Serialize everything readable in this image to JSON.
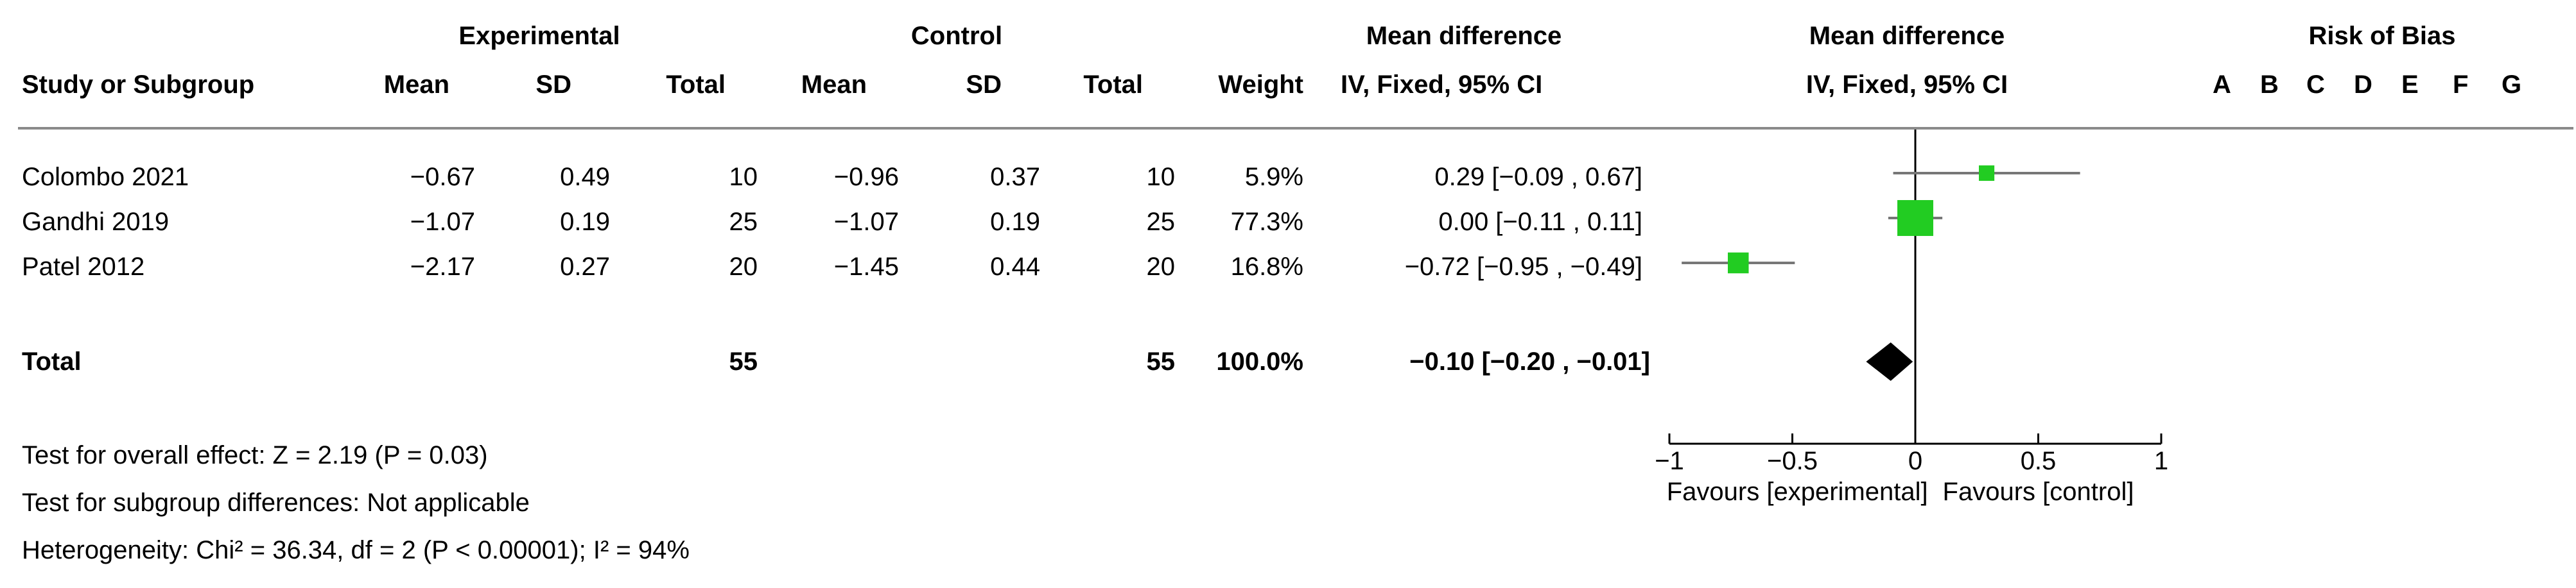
{
  "header": {
    "group1": "Experimental",
    "group2": "Control",
    "md_text_title": "Mean difference",
    "md_plot_title": "Mean difference",
    "rob_title": "Risk of Bias",
    "col_study": "Study or Subgroup",
    "col_mean1": "Mean",
    "col_sd1": "SD",
    "col_total1": "Total",
    "col_mean2": "Mean",
    "col_sd2": "SD",
    "col_total2": "Total",
    "col_weight": "Weight",
    "col_ci": "IV, Fixed, 95% CI",
    "col_plot_ci": "IV, Fixed, 95% CI",
    "rob_letters": [
      "A",
      "B",
      "C",
      "D",
      "E",
      "F",
      "G"
    ]
  },
  "studies": [
    {
      "name": "Colombo 2021",
      "mean1": "−0.67",
      "sd1": "0.49",
      "total1": "10",
      "mean2": "−0.96",
      "sd2": "0.37",
      "total2": "10",
      "weight": "5.9%",
      "ci": "0.29 [−0.09 ,  0.67]"
    },
    {
      "name": "Gandhi 2019",
      "mean1": "−1.07",
      "sd1": "0.19",
      "total1": "25",
      "mean2": "−1.07",
      "sd2": "0.19",
      "total2": "25",
      "weight": "77.3%",
      "ci": "0.00 [−0.11 ,  0.11]"
    },
    {
      "name": "Patel 2012",
      "mean1": "−2.17",
      "sd1": "0.27",
      "total1": "20",
      "mean2": "−1.45",
      "sd2": "0.44",
      "total2": "20",
      "weight": "16.8%",
      "ci": "−0.72 [−0.95 , −0.49]"
    }
  ],
  "total": {
    "label": "Total",
    "total1": "55",
    "total2": "55",
    "weight": "100.0%",
    "ci": "−0.10 [−0.20 , −0.01]"
  },
  "footer": {
    "overall": "Test for overall effect: Z = 2.19 (P = 0.03)",
    "subgroup": "Test for subgroup differences: Not applicable",
    "heterogeneity": "Heterogeneity: Chi² = 36.34, df = 2 (P < 0.00001); I² = 94%"
  },
  "colors": {
    "square": "#22cc22",
    "diamond": "#000000",
    "ci_line": "#777777",
    "axis": "#000000"
  },
  "chart_data": {
    "type": "forest",
    "studies": [
      "Colombo 2021",
      "Gandhi 2019",
      "Patel 2012"
    ],
    "estimates": [
      0.29,
      0.0,
      -0.72
    ],
    "ci_lower": [
      -0.09,
      -0.11,
      -0.95
    ],
    "ci_upper": [
      0.67,
      0.11,
      -0.49
    ],
    "weights": [
      5.9,
      77.3,
      16.8
    ],
    "pooled": {
      "estimate": -0.1,
      "ci_lower": -0.2,
      "ci_upper": -0.01
    },
    "xlim": [
      -1,
      1
    ],
    "xticks": [
      -1,
      -0.5,
      0,
      0.5,
      1
    ],
    "xtick_labels": [
      "−1",
      "−0.5",
      "0",
      "0.5",
      "1"
    ],
    "left_label": "Favours [experimental]",
    "right_label": "Favours [control]"
  }
}
